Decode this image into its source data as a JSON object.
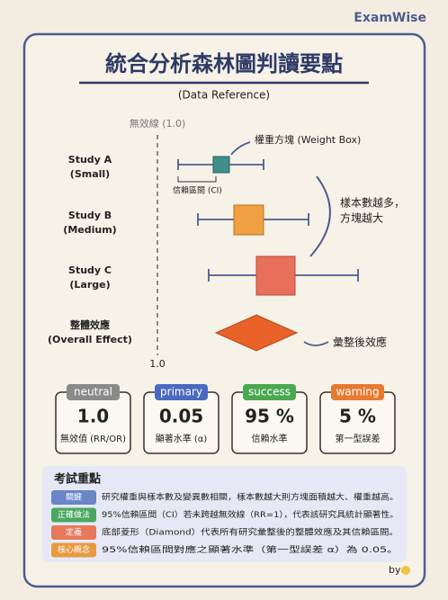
{
  "brand": "ExamWise",
  "header": {
    "title": "統合分析森林圖判讀要點",
    "subtitle": "(Data Reference)"
  },
  "plot": {
    "null_line_label": "無效線 (1.0)",
    "axis_label": "1.0",
    "studies": [
      {
        "name": "Study A",
        "size": "(Small)"
      },
      {
        "name": "Study B",
        "size": "(Medium)"
      },
      {
        "name": "Study C",
        "size": "(Large)"
      },
      {
        "name": "整體效應",
        "size": "(Overall Effect)"
      }
    ],
    "annotations": {
      "weight_box": "權重方塊 (Weight Box)",
      "ci": "信賴區間 (CI)",
      "sample_line1": "樣本數越多，",
      "sample_line2": "方塊越大",
      "pooled": "彙整後效應"
    }
  },
  "cards": [
    {
      "tag": "neutral",
      "value": "1.0",
      "label": "無效值 (RR/OR)"
    },
    {
      "tag": "primary",
      "value": "0.05",
      "label": "顯著水準 (α)"
    },
    {
      "tag": "success",
      "value": "95 %",
      "label": "信賴水準"
    },
    {
      "tag": "warning",
      "value": "5 %",
      "label": "第一型誤差"
    }
  ],
  "exam": {
    "title": "考試重點",
    "rows": [
      {
        "tag": "關鍵",
        "text": "研究權重與樣本數及變異數相關，樣本數越大則方塊面積越大、權重越高。"
      },
      {
        "tag": "正確做法",
        "text": "95%信賴區間（CI）若未跨越無效線（RR=1），代表該研究具統計顯著性。"
      },
      {
        "tag": "定義",
        "text": "底部菱形（Diamond）代表所有研究彙整後的整體效應及其信賴區間。"
      },
      {
        "tag": "核心概念",
        "text": "95%信賴區間對應之顯著水準（第一型誤差 α）為 0.05。"
      }
    ]
  },
  "footer": "by"
}
